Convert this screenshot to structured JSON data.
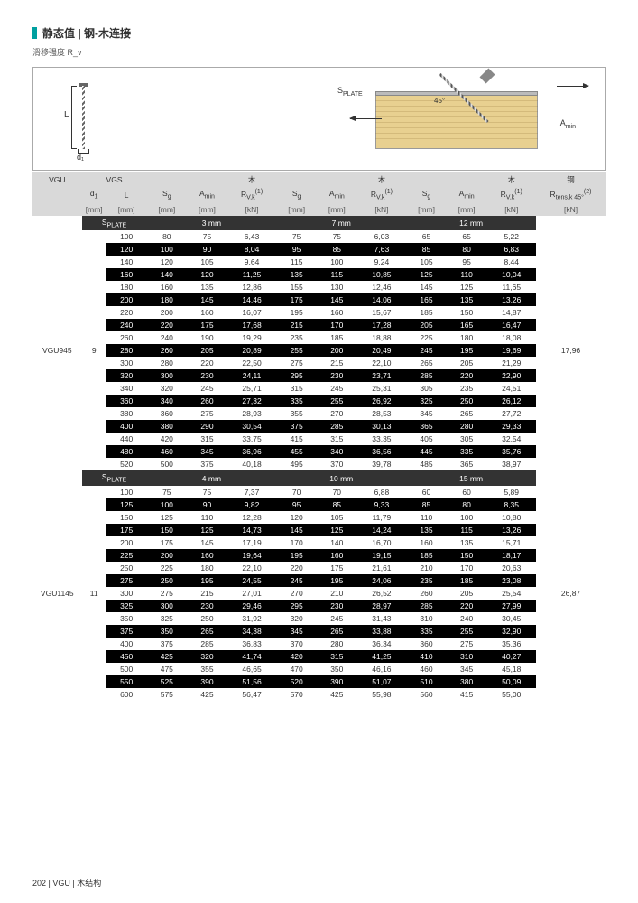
{
  "page": {
    "title": "静态值 | 钢-木连接",
    "subtitle": "滑移强度 R_v",
    "footer_page": "202",
    "footer": "| VGU | 木结构"
  },
  "diagram": {
    "L": "L",
    "d1": "d₁",
    "splate": "S_PLATE",
    "amin": "A_min",
    "angle": "45°",
    "sg": "S_g"
  },
  "columns": {
    "vgu": "VGU",
    "vgs": "VGS",
    "wood": "木",
    "steel": "钢",
    "d1": "d₁",
    "L": "L",
    "Sg": "S_g",
    "Amin": "A_min",
    "Rvk": "R_V,k (1)",
    "Rtens": "R_tens,k 45° (2)",
    "mm": "[mm]",
    "kn": "[kN]"
  },
  "splate_label": "S_PLATE",
  "sections": [
    {
      "model": "VGU945",
      "d1": "9",
      "rtens": "17,96",
      "thick": [
        "3 mm",
        "7 mm",
        "12 mm"
      ],
      "rows": [
        [
          "100",
          "80",
          "75",
          "6,43",
          "75",
          "75",
          "6,03",
          "65",
          "65",
          "5,22"
        ],
        [
          "120",
          "100",
          "90",
          "8,04",
          "95",
          "85",
          "7,63",
          "85",
          "80",
          "6,83"
        ],
        [
          "140",
          "120",
          "105",
          "9,64",
          "115",
          "100",
          "9,24",
          "105",
          "95",
          "8,44"
        ],
        [
          "160",
          "140",
          "120",
          "11,25",
          "135",
          "115",
          "10,85",
          "125",
          "110",
          "10,04"
        ],
        [
          "180",
          "160",
          "135",
          "12,86",
          "155",
          "130",
          "12,46",
          "145",
          "125",
          "11,65"
        ],
        [
          "200",
          "180",
          "145",
          "14,46",
          "175",
          "145",
          "14,06",
          "165",
          "135",
          "13,26"
        ],
        [
          "220",
          "200",
          "160",
          "16,07",
          "195",
          "160",
          "15,67",
          "185",
          "150",
          "14,87"
        ],
        [
          "240",
          "220",
          "175",
          "17,68",
          "215",
          "170",
          "17,28",
          "205",
          "165",
          "16,47"
        ],
        [
          "260",
          "240",
          "190",
          "19,29",
          "235",
          "185",
          "18,88",
          "225",
          "180",
          "18,08"
        ],
        [
          "280",
          "260",
          "205",
          "20,89",
          "255",
          "200",
          "20,49",
          "245",
          "195",
          "19,69"
        ],
        [
          "300",
          "280",
          "220",
          "22,50",
          "275",
          "215",
          "22,10",
          "265",
          "205",
          "21,29"
        ],
        [
          "320",
          "300",
          "230",
          "24,11",
          "295",
          "230",
          "23,71",
          "285",
          "220",
          "22,90"
        ],
        [
          "340",
          "320",
          "245",
          "25,71",
          "315",
          "245",
          "25,31",
          "305",
          "235",
          "24,51"
        ],
        [
          "360",
          "340",
          "260",
          "27,32",
          "335",
          "255",
          "26,92",
          "325",
          "250",
          "26,12"
        ],
        [
          "380",
          "360",
          "275",
          "28,93",
          "355",
          "270",
          "28,53",
          "345",
          "265",
          "27,72"
        ],
        [
          "400",
          "380",
          "290",
          "30,54",
          "375",
          "285",
          "30,13",
          "365",
          "280",
          "29,33"
        ],
        [
          "440",
          "420",
          "315",
          "33,75",
          "415",
          "315",
          "33,35",
          "405",
          "305",
          "32,54"
        ],
        [
          "480",
          "460",
          "345",
          "36,96",
          "455",
          "340",
          "36,56",
          "445",
          "335",
          "35,76"
        ],
        [
          "520",
          "500",
          "375",
          "40,18",
          "495",
          "370",
          "39,78",
          "485",
          "365",
          "38,97"
        ]
      ]
    },
    {
      "model": "VGU1145",
      "d1": "11",
      "rtens": "26,87",
      "thick": [
        "4 mm",
        "10 mm",
        "15 mm"
      ],
      "rows": [
        [
          "100",
          "75",
          "75",
          "7,37",
          "70",
          "70",
          "6,88",
          "60",
          "60",
          "5,89"
        ],
        [
          "125",
          "100",
          "90",
          "9,82",
          "95",
          "85",
          "9,33",
          "85",
          "80",
          "8,35"
        ],
        [
          "150",
          "125",
          "110",
          "12,28",
          "120",
          "105",
          "11,79",
          "110",
          "100",
          "10,80"
        ],
        [
          "175",
          "150",
          "125",
          "14,73",
          "145",
          "125",
          "14,24",
          "135",
          "115",
          "13,26"
        ],
        [
          "200",
          "175",
          "145",
          "17,19",
          "170",
          "140",
          "16,70",
          "160",
          "135",
          "15,71"
        ],
        [
          "225",
          "200",
          "160",
          "19,64",
          "195",
          "160",
          "19,15",
          "185",
          "150",
          "18,17"
        ],
        [
          "250",
          "225",
          "180",
          "22,10",
          "220",
          "175",
          "21,61",
          "210",
          "170",
          "20,63"
        ],
        [
          "275",
          "250",
          "195",
          "24,55",
          "245",
          "195",
          "24,06",
          "235",
          "185",
          "23,08"
        ],
        [
          "300",
          "275",
          "215",
          "27,01",
          "270",
          "210",
          "26,52",
          "260",
          "205",
          "25,54"
        ],
        [
          "325",
          "300",
          "230",
          "29,46",
          "295",
          "230",
          "28,97",
          "285",
          "220",
          "27,99"
        ],
        [
          "350",
          "325",
          "250",
          "31,92",
          "320",
          "245",
          "31,43",
          "310",
          "240",
          "30,45"
        ],
        [
          "375",
          "350",
          "265",
          "34,38",
          "345",
          "265",
          "33,88",
          "335",
          "255",
          "32,90"
        ],
        [
          "400",
          "375",
          "285",
          "36,83",
          "370",
          "280",
          "36,34",
          "360",
          "275",
          "35,36"
        ],
        [
          "450",
          "425",
          "320",
          "41,74",
          "420",
          "315",
          "41,25",
          "410",
          "310",
          "40,27"
        ],
        [
          "500",
          "475",
          "355",
          "46,65",
          "470",
          "350",
          "46,16",
          "460",
          "345",
          "45,18"
        ],
        [
          "550",
          "525",
          "390",
          "51,56",
          "520",
          "390",
          "51,07",
          "510",
          "380",
          "50,09"
        ],
        [
          "600",
          "575",
          "425",
          "56,47",
          "570",
          "425",
          "55,98",
          "560",
          "415",
          "55,00"
        ]
      ]
    }
  ],
  "colors": {
    "accent": "#00a0a0",
    "headerGrey": "#d9d9d9",
    "darkRow": "#000000",
    "lightRow": "#ffffff",
    "wood": "#e8d090",
    "plate": "#bbbbbb"
  }
}
